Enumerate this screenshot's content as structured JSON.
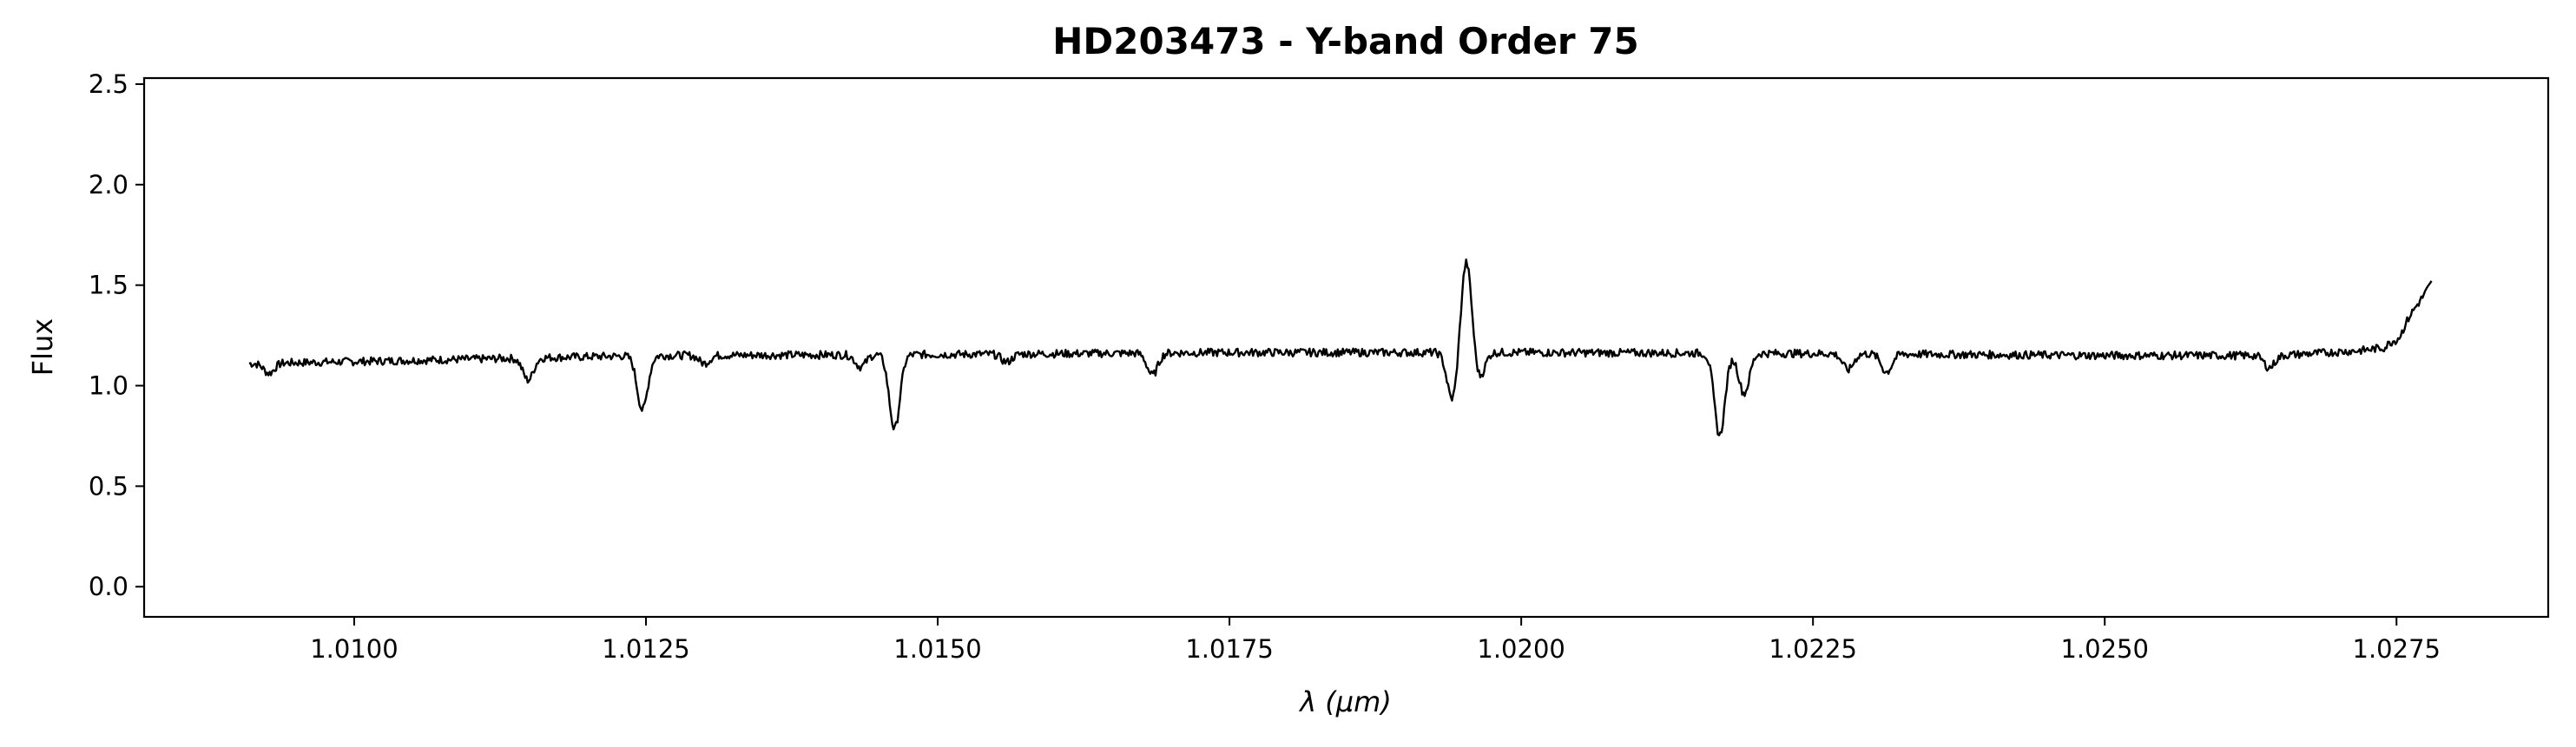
{
  "chart_data": {
    "type": "line",
    "title": "HD203473 - Y-band Order 75",
    "xlabel": "λ (μm)",
    "ylabel": "Flux",
    "xlim": [
      1.0082,
      1.0288
    ],
    "ylim": [
      -0.15,
      2.53
    ],
    "xticks": [
      1.01,
      1.0125,
      1.015,
      1.0175,
      1.02,
      1.0225,
      1.025,
      1.0275
    ],
    "xtick_labels": [
      "1.0100",
      "1.0125",
      "1.0150",
      "1.0175",
      "1.0200",
      "1.0225",
      "1.0250",
      "1.0275"
    ],
    "yticks": [
      0.0,
      0.5,
      1.0,
      1.5,
      2.0,
      2.5
    ],
    "ytick_labels": [
      "0.0",
      "0.5",
      "1.0",
      "1.5",
      "2.0",
      "2.5"
    ],
    "grid": false,
    "line_color": "#000000",
    "series": [
      {
        "x_start": 1.0091,
        "x_end": 1.0278,
        "baseline": [
          [
            1.0091,
            1.11
          ],
          [
            1.01,
            1.12
          ],
          [
            1.0125,
            1.15
          ],
          [
            1.015,
            1.155
          ],
          [
            1.0175,
            1.165
          ],
          [
            1.02,
            1.165
          ],
          [
            1.0225,
            1.16
          ],
          [
            1.025,
            1.15
          ],
          [
            1.0265,
            1.15
          ],
          [
            1.0272,
            1.175
          ],
          [
            1.0274,
            1.19
          ],
          [
            1.0276,
            1.34
          ],
          [
            1.0277,
            1.42
          ],
          [
            1.0278,
            1.51
          ]
        ],
        "features": [
          {
            "x": 1.00927,
            "depth": -0.05
          },
          {
            "x": 1.01149,
            "depth": -0.11
          },
          {
            "x": 1.01247,
            "depth": -0.27
          },
          {
            "x": 1.013,
            "depth": -0.04
          },
          {
            "x": 1.01434,
            "depth": -0.06
          },
          {
            "x": 1.01463,
            "depth": -0.37
          },
          {
            "x": 1.01559,
            "depth": -0.04
          },
          {
            "x": 1.01684,
            "depth": -0.11
          },
          {
            "x": 1.01941,
            "depth": -0.24
          },
          {
            "x": 1.01953,
            "depth": 0.46
          },
          {
            "x": 1.01964,
            "depth": -0.13
          },
          {
            "x": 1.0217,
            "depth": -0.41
          },
          {
            "x": 1.02191,
            "depth": -0.2
          },
          {
            "x": 1.0228,
            "depth": -0.08
          },
          {
            "x": 1.02313,
            "depth": -0.09
          },
          {
            "x": 1.02641,
            "depth": -0.06
          },
          {
            "x": 1.02752,
            "depth": -0.04
          }
        ]
      }
    ]
  }
}
